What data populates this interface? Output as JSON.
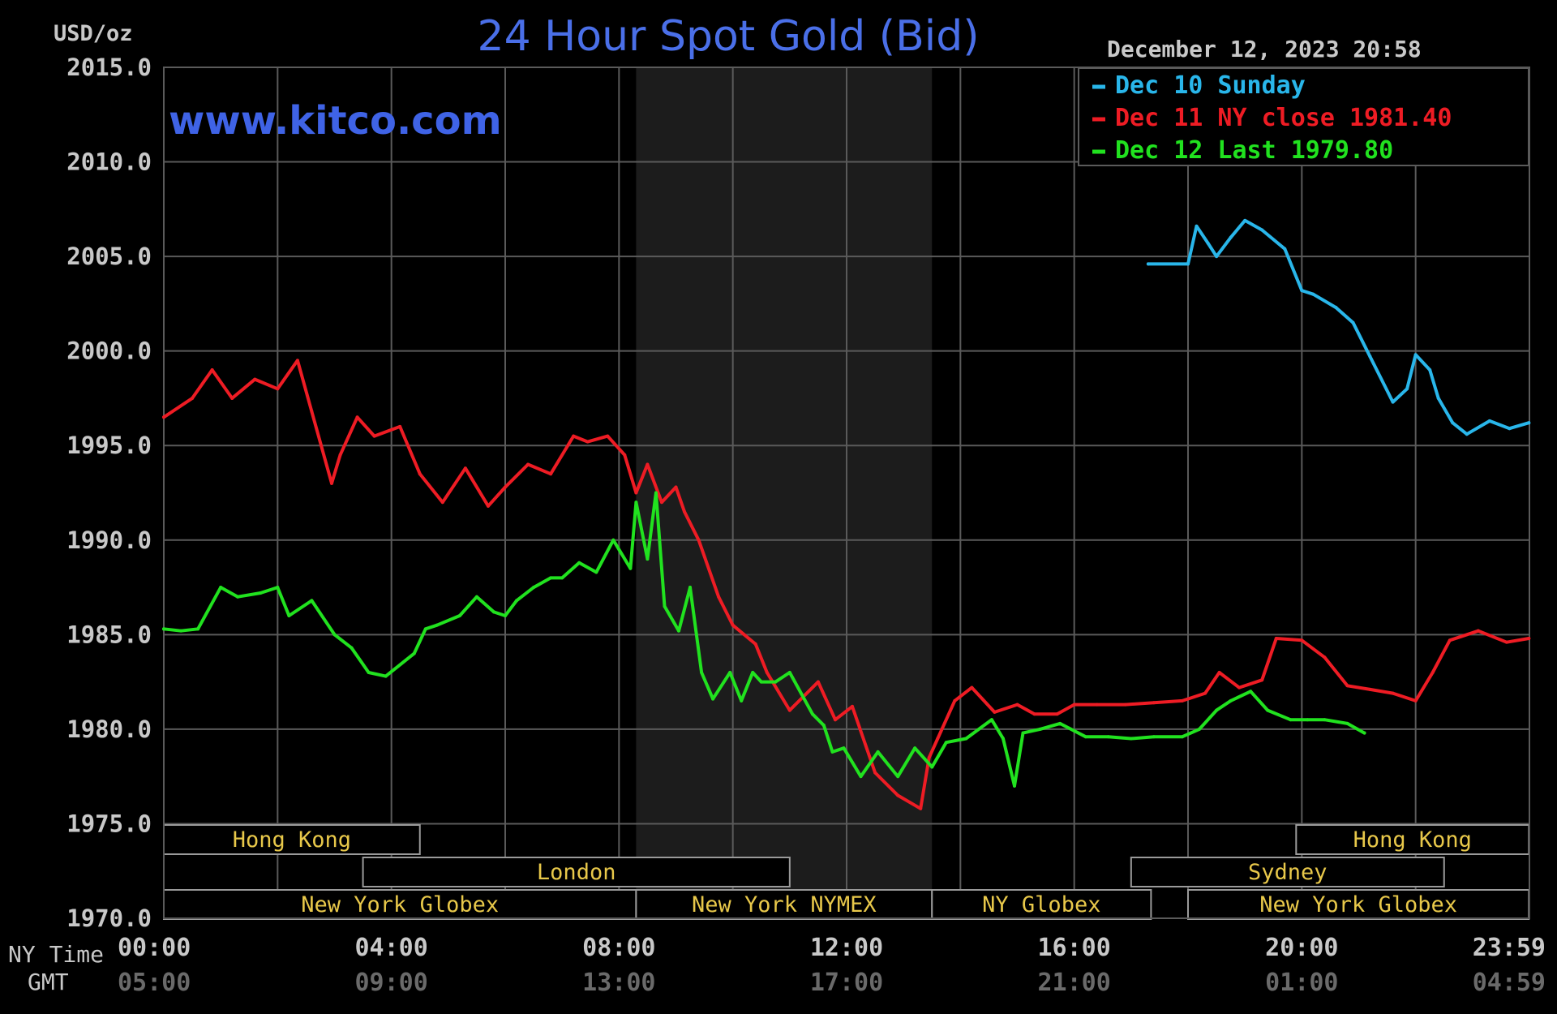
{
  "chart_data": {
    "type": "line",
    "title": "24 Hour Spot Gold (Bid)",
    "unit_label": "USD/oz",
    "website": "www.kitco.com",
    "timestamp": "December 12, 2023 20:58",
    "ylim": [
      1970,
      2015
    ],
    "y_ticks": [
      "2015.0",
      "2010.0",
      "2005.0",
      "2000.0",
      "1995.0",
      "1990.0",
      "1985.0",
      "1980.0",
      "1975.0",
      "1970.0"
    ],
    "x_row_labels": [
      "NY Time",
      "GMT"
    ],
    "x_ticks_ny": [
      "00:00",
      "04:00",
      "08:00",
      "12:00",
      "16:00",
      "20:00",
      "23:59"
    ],
    "x_ticks_gmt": [
      "05:00",
      "09:00",
      "13:00",
      "17:00",
      "21:00",
      "01:00",
      "04:59"
    ],
    "grid": true,
    "legend_position": "top-right",
    "nymex_shading_hours": [
      8.3,
      13.5
    ],
    "colors": {
      "background": "#000000",
      "grid": "#5a5a5a",
      "title": "#4a6fe8",
      "website": "#3f63e6",
      "text": "#c8c8c8",
      "session_text": "#e8c84a",
      "shading": "#1c1c1c"
    },
    "series": [
      {
        "name": "Dec 10 Sunday",
        "legend_label": "Dec 10 Sunday",
        "color": "#29b6ea",
        "x": [
          17.3,
          18.0,
          18.15,
          18.35,
          18.5,
          18.75,
          19.0,
          19.3,
          19.7,
          20.0,
          20.2,
          20.6,
          20.9,
          21.2,
          21.6,
          21.85,
          22.0,
          22.25,
          22.4,
          22.65,
          22.9,
          23.3,
          23.65,
          23.99
        ],
        "y": [
          2004.6,
          2004.6,
          2006.6,
          2005.7,
          2005.0,
          2006.0,
          2006.9,
          2006.4,
          2005.4,
          2003.2,
          2003.0,
          2002.3,
          2001.5,
          1999.7,
          1997.3,
          1998.0,
          1999.8,
          1999.0,
          1997.5,
          1996.2,
          1995.6,
          1996.3,
          1995.9,
          1996.2
        ]
      },
      {
        "name": "Dec 11 NY close 1981.40",
        "legend_label": "Dec 11 NY close 1981.40",
        "color": "#ee1c24",
        "x": [
          0.0,
          0.5,
          0.85,
          1.2,
          1.6,
          2.0,
          2.35,
          2.6,
          2.95,
          3.1,
          3.4,
          3.7,
          4.15,
          4.5,
          4.9,
          5.3,
          5.7,
          6.0,
          6.4,
          6.8,
          7.2,
          7.45,
          7.8,
          8.1,
          8.3,
          8.5,
          8.75,
          9.0,
          9.15,
          9.4,
          9.75,
          10.0,
          10.4,
          10.6,
          11.0,
          11.5,
          11.8,
          12.1,
          12.5,
          12.9,
          13.3,
          13.45,
          13.6,
          13.9,
          14.2,
          14.6,
          15.0,
          15.3,
          15.7,
          16.0,
          16.4,
          16.9,
          17.4,
          17.9,
          18.3,
          18.55,
          18.9,
          19.3,
          19.55,
          20.0,
          20.4,
          20.8,
          21.2,
          21.6,
          22.0,
          22.3,
          22.6,
          22.8,
          23.1,
          23.6,
          23.99
        ],
        "y": [
          1996.5,
          1997.5,
          1999.0,
          1997.5,
          1998.5,
          1998.0,
          1999.5,
          1996.8,
          1993.0,
          1994.5,
          1996.5,
          1995.5,
          1996.0,
          1993.5,
          1992.0,
          1993.8,
          1991.8,
          1992.8,
          1994.0,
          1993.5,
          1995.5,
          1995.2,
          1995.5,
          1994.5,
          1992.5,
          1994.0,
          1992.0,
          1992.8,
          1991.5,
          1990.0,
          1987.0,
          1985.5,
          1984.5,
          1983.0,
          1981.0,
          1982.5,
          1980.5,
          1981.2,
          1977.7,
          1976.5,
          1975.8,
          1978.5,
          1979.5,
          1981.5,
          1982.2,
          1980.9,
          1981.3,
          1980.8,
          1980.8,
          1981.3,
          1981.3,
          1981.3,
          1981.4,
          1981.5,
          1981.9,
          1983.0,
          1982.2,
          1982.6,
          1984.8,
          1984.7,
          1983.8,
          1982.3,
          1982.1,
          1981.9,
          1981.5,
          1983.0,
          1984.7,
          1984.9,
          1985.2,
          1984.6,
          1984.8
        ]
      },
      {
        "name": "Dec 12 Last 1979.80",
        "legend_label": "Dec 12 Last 1979.80",
        "color": "#21e21f",
        "x": [
          0.0,
          0.3,
          0.6,
          1.0,
          1.3,
          1.7,
          2.0,
          2.2,
          2.6,
          3.0,
          3.3,
          3.6,
          3.9,
          4.4,
          4.6,
          4.8,
          5.2,
          5.5,
          5.8,
          6.0,
          6.2,
          6.5,
          6.8,
          7.0,
          7.3,
          7.6,
          7.9,
          8.2,
          8.3,
          8.5,
          8.65,
          8.8,
          9.05,
          9.25,
          9.45,
          9.65,
          9.95,
          10.15,
          10.35,
          10.5,
          10.75,
          11.0,
          11.4,
          11.6,
          11.75,
          11.95,
          12.25,
          12.55,
          12.9,
          13.2,
          13.5,
          13.75,
          14.1,
          14.55,
          14.75,
          14.95,
          15.1,
          15.4,
          15.75,
          16.2,
          16.6,
          17.0,
          17.4,
          17.9,
          18.2,
          18.5,
          18.75,
          19.1,
          19.4,
          19.8,
          20.1,
          20.4,
          20.8,
          21.1
        ],
        "y": [
          1985.3,
          1985.2,
          1985.3,
          1987.5,
          1987.0,
          1987.2,
          1987.5,
          1986.0,
          1986.8,
          1985.0,
          1984.3,
          1983.0,
          1982.8,
          1984.0,
          1985.3,
          1985.5,
          1986.0,
          1987.0,
          1986.2,
          1986.0,
          1986.8,
          1987.5,
          1988.0,
          1988.0,
          1988.8,
          1988.3,
          1990.0,
          1988.5,
          1992.0,
          1989.0,
          1992.5,
          1986.5,
          1985.2,
          1987.5,
          1983.0,
          1981.6,
          1983.0,
          1981.5,
          1983.0,
          1982.5,
          1982.5,
          1983.0,
          1980.8,
          1980.2,
          1978.8,
          1979.0,
          1977.5,
          1978.8,
          1977.5,
          1979.0,
          1978.0,
          1979.3,
          1979.5,
          1980.5,
          1979.5,
          1977.0,
          1979.8,
          1980.0,
          1980.3,
          1979.6,
          1979.6,
          1979.5,
          1979.6,
          1979.6,
          1980.0,
          1981.0,
          1981.5,
          1982.0,
          1981.0,
          1980.5,
          1980.5,
          1980.5,
          1980.3,
          1979.8
        ]
      }
    ],
    "sessions": [
      {
        "label": "Hong Kong",
        "start": 0.0,
        "end": 4.5,
        "row": 0
      },
      {
        "label": "Hong Kong",
        "start": 19.9,
        "end": 23.99,
        "row": 0
      },
      {
        "label": "London",
        "start": 3.5,
        "end": 11.0,
        "row": 1
      },
      {
        "label": "Sydney",
        "start": 17.0,
        "end": 22.5,
        "row": 1
      },
      {
        "label": "New York Globex",
        "start": 0.0,
        "end": 8.3,
        "row": 2
      },
      {
        "label": "New York NYMEX",
        "start": 8.3,
        "end": 13.5,
        "row": 2
      },
      {
        "label": "NY Globex",
        "start": 13.5,
        "end": 17.35,
        "row": 2
      },
      {
        "label": "New York Globex",
        "start": 18.0,
        "end": 23.99,
        "row": 2
      }
    ]
  }
}
